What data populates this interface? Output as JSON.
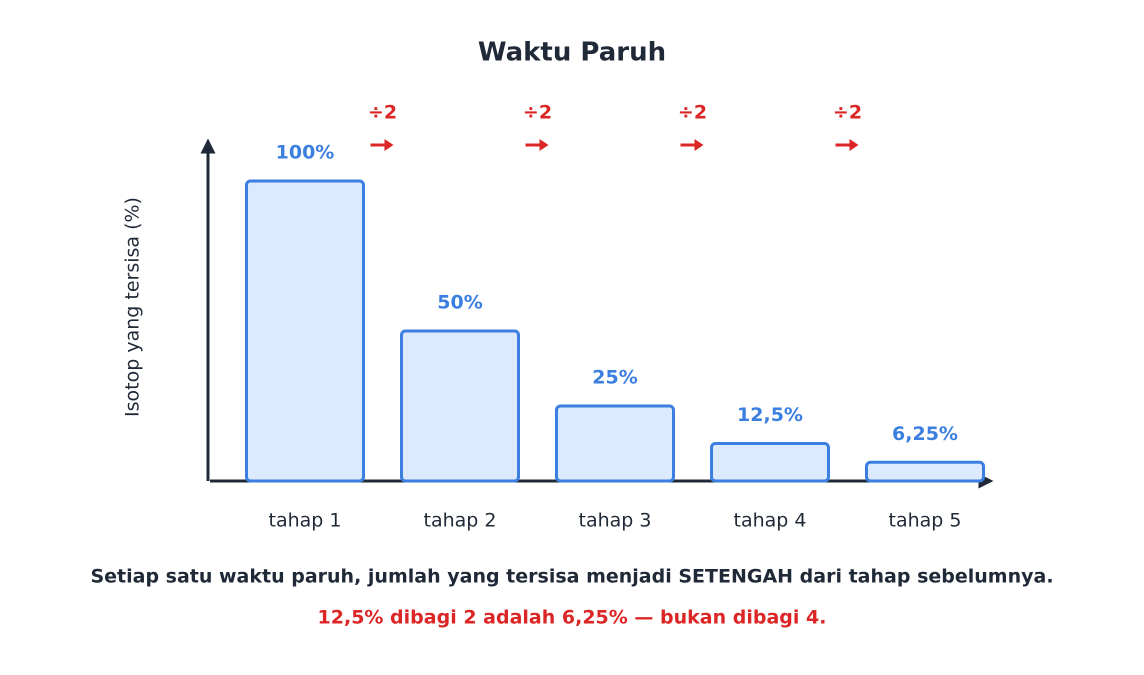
{
  "chart_data": {
    "type": "bar",
    "title": "Waktu Paruh",
    "y_label": "Isotop yang tersisa (%)",
    "categories": [
      "tahap 1",
      "tahap 2",
      "tahap 3",
      "tahap 4",
      "tahap 5"
    ],
    "values": [
      100,
      50,
      25,
      12.5,
      6.25
    ],
    "value_labels": [
      "100%",
      "50%",
      "25%",
      "12,5%",
      "6,25%"
    ],
    "color": "#dbeafe",
    "edge_color": "#3b7fe0",
    "label_color": "#3b7fe0",
    "ylim": [
      0,
      100
    ],
    "step_labels": [
      "÷2",
      "÷2",
      "÷2",
      "÷2"
    ],
    "step_color": "#dc2626",
    "notes": [
      {
        "text": "Setiap satu waktu paruh, jumlah yang tersisa menjadi SETENGAH dari tahap sebelumnya.",
        "color": "#1f2937"
      },
      {
        "text": "12,5% dibagi 2 adalah 6,25% — bukan dibagi 4.",
        "color": "#dc2626"
      }
    ]
  }
}
